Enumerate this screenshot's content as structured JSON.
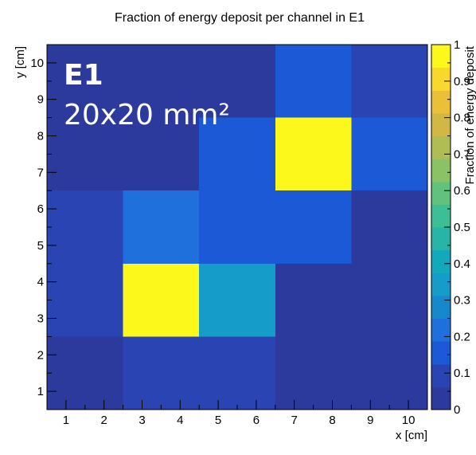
{
  "chart_data": {
    "type": "heatmap",
    "title": "Fraction of energy deposit per channel in E1",
    "xlabel": "x [cm]",
    "ylabel": "y [cm]",
    "zlabel": "Fraction of energy deposit",
    "xlim": [
      0.5,
      10.5
    ],
    "ylim": [
      0.5,
      10.5
    ],
    "zlim": [
      0,
      1
    ],
    "x_ticks": [
      "1",
      "2",
      "3",
      "4",
      "5",
      "6",
      "7",
      "8",
      "9",
      "10"
    ],
    "y_ticks": [
      "1",
      "2",
      "3",
      "4",
      "5",
      "6",
      "7",
      "8",
      "9",
      "10"
    ],
    "z_ticks": [
      "0",
      "0.1",
      "0.2",
      "0.3",
      "0.4",
      "0.5",
      "0.6",
      "0.7",
      "0.8",
      "0.9",
      "1"
    ],
    "palette": [
      "#2b3a9c",
      "#2a44b4",
      "#1b59d6",
      "#1f6fdc",
      "#1689cc",
      "#159cc8",
      "#12a9bb",
      "#26b5a6",
      "#3cbf95",
      "#62c27d",
      "#8cc266",
      "#b0bd55",
      "#d1b845",
      "#ecc036",
      "#f8d82a",
      "#fdf81b"
    ],
    "cells": [
      {
        "x": [
          0.5,
          2.5
        ],
        "y": [
          0.5,
          2.5
        ],
        "value": 0.02
      },
      {
        "x": [
          2.5,
          6.5
        ],
        "y": [
          0.5,
          2.5
        ],
        "value": 0.12
      },
      {
        "x": [
          6.5,
          10.5
        ],
        "y": [
          0.5,
          4.5
        ],
        "value": 0.02
      },
      {
        "x": [
          0.5,
          2.5
        ],
        "y": [
          2.5,
          6.5
        ],
        "value": 0.12
      },
      {
        "x": [
          2.5,
          4.5
        ],
        "y": [
          2.5,
          4.5
        ],
        "value": 1.0
      },
      {
        "x": [
          4.5,
          6.5
        ],
        "y": [
          2.5,
          4.5
        ],
        "value": 0.32
      },
      {
        "x": [
          2.5,
          4.5
        ],
        "y": [
          4.5,
          6.5
        ],
        "value": 0.24
      },
      {
        "x": [
          4.5,
          8.5
        ],
        "y": [
          4.5,
          6.5
        ],
        "value": 0.15
      },
      {
        "x": [
          8.5,
          10.5
        ],
        "y": [
          4.5,
          6.5
        ],
        "value": 0.02
      },
      {
        "x": [
          0.5,
          4.5
        ],
        "y": [
          6.5,
          10.5
        ],
        "value": 0.02
      },
      {
        "x": [
          4.5,
          6.5
        ],
        "y": [
          6.5,
          8.5
        ],
        "value": 0.15
      },
      {
        "x": [
          4.5,
          6.5
        ],
        "y": [
          8.5,
          10.5
        ],
        "value": 0.02
      },
      {
        "x": [
          6.5,
          8.5
        ],
        "y": [
          6.5,
          8.5
        ],
        "value": 1.0
      },
      {
        "x": [
          6.5,
          8.5
        ],
        "y": [
          8.5,
          10.5
        ],
        "value": 0.18
      },
      {
        "x": [
          8.5,
          10.5
        ],
        "y": [
          6.5,
          8.5
        ],
        "value": 0.18
      },
      {
        "x": [
          8.5,
          10.5
        ],
        "y": [
          8.5,
          10.5
        ],
        "value": 0.08
      }
    ],
    "annotation": {
      "name": "E1",
      "size": "20x20 mm²"
    }
  }
}
